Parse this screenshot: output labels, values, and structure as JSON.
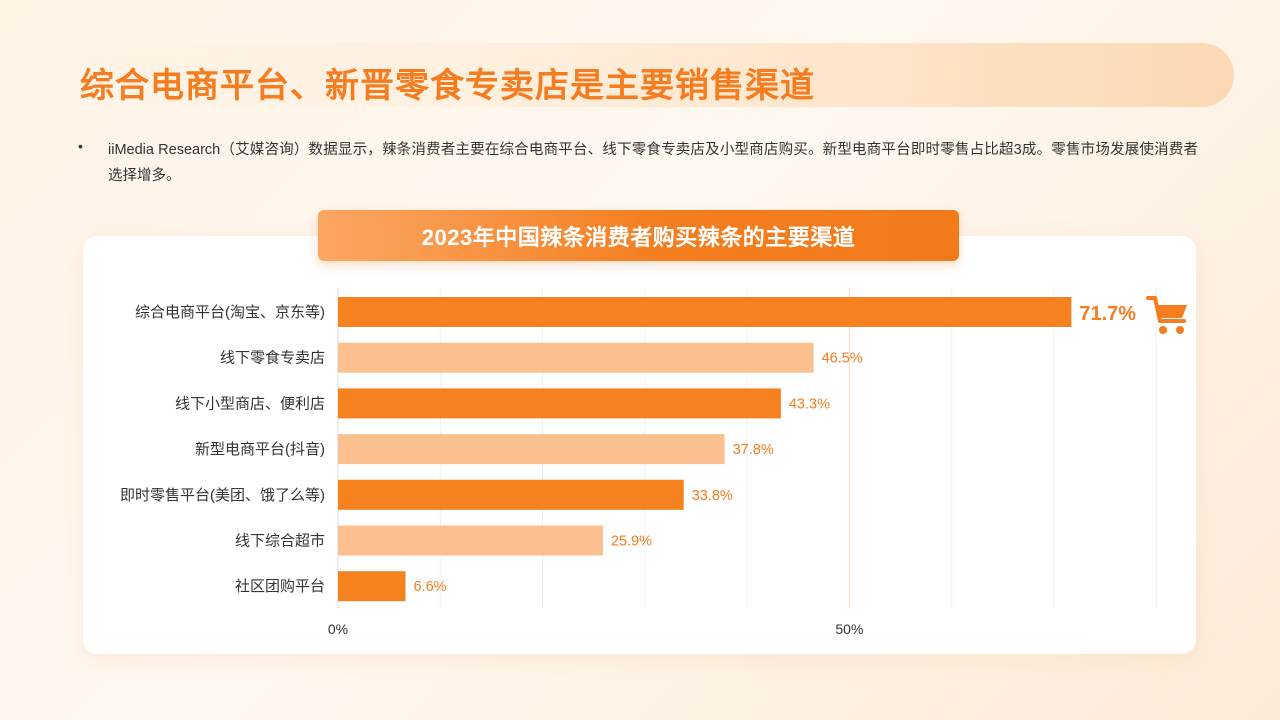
{
  "page": {
    "title": "综合电商平台、新晋零食专卖店是主要销售渠道",
    "bullet": "•",
    "summary": "iiMedia Research（艾媒咨询）数据显示，辣条消费者主要在综合电商平台、线下零食专卖店及小型商店购买。新型电商平台即时零售占比超3成。零售市场发展使消费者选择增多。"
  },
  "colors": {
    "accent": "#f57c1f",
    "bar_dark": "#f5821f",
    "bar_light": "#fcc08e",
    "label": "#f57c1f"
  },
  "chart_data": {
    "type": "bar",
    "orientation": "horizontal",
    "title": "2023年中国辣条消费者购买辣条的主要渠道",
    "categories": [
      "综合电商平台(淘宝、京东等)",
      "线下零食专卖店",
      "线下小型商店、便利店",
      "新型电商平台(抖音)",
      "即时零售平台(美团、饿了么等)",
      "线下综合超市",
      "社区团购平台"
    ],
    "values": [
      71.7,
      46.5,
      43.3,
      37.8,
      33.8,
      25.9,
      6.6
    ],
    "value_labels": [
      "71.7%",
      "46.5%",
      "43.3%",
      "37.8%",
      "33.8%",
      "25.9%",
      "6.6%"
    ],
    "bar_shades": [
      "dark",
      "light",
      "dark",
      "light",
      "dark",
      "light",
      "dark"
    ],
    "xlim": [
      0,
      80
    ],
    "xticks": [
      0,
      50
    ],
    "xtick_labels": [
      "0%",
      "50%"
    ],
    "grid_step": 10,
    "highlight_icon": "shopping-cart-icon"
  }
}
